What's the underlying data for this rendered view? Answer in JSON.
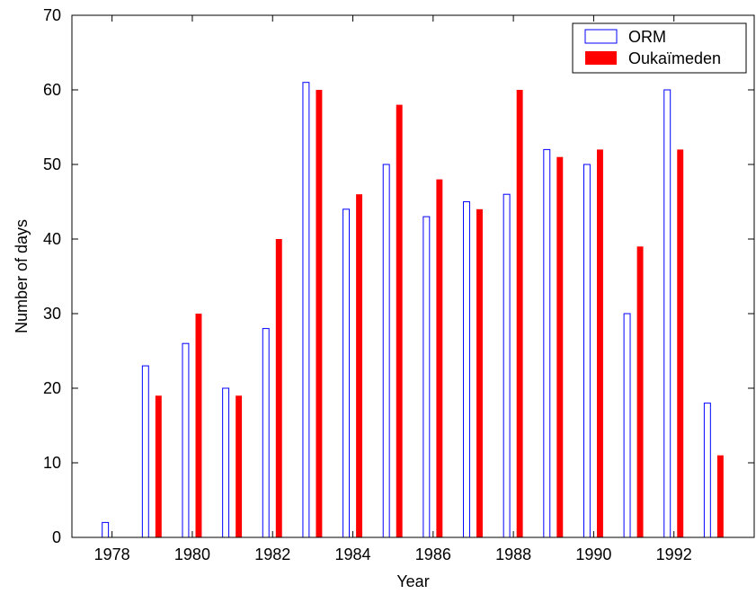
{
  "chart_data": {
    "type": "bar",
    "x": [
      1978,
      1979,
      1980,
      1981,
      1982,
      1983,
      1984,
      1985,
      1986,
      1987,
      1988,
      1989,
      1990,
      1991,
      1992,
      1993
    ],
    "series": [
      {
        "name": "ORM",
        "style": "outline",
        "color": "#0000ff",
        "values": [
          2,
          23,
          26,
          20,
          28,
          61,
          44,
          50,
          43,
          45,
          46,
          52,
          50,
          30,
          60,
          18
        ]
      },
      {
        "name": "Oukaïmeden",
        "style": "filled",
        "color": "#ff0000",
        "values": [
          0,
          19,
          30,
          19,
          40,
          60,
          46,
          58,
          48,
          44,
          60,
          51,
          52,
          39,
          52,
          11
        ]
      }
    ],
    "xlabel": "Year",
    "ylabel": "Number of days",
    "xlim": [
      1977,
      1994
    ],
    "ylim": [
      0,
      70
    ],
    "xticks": [
      1978,
      1980,
      1982,
      1984,
      1986,
      1988,
      1990,
      1992
    ],
    "yticks": [
      0,
      10,
      20,
      30,
      40,
      50,
      60,
      70
    ],
    "grid": false,
    "legend_position": "top-right"
  }
}
